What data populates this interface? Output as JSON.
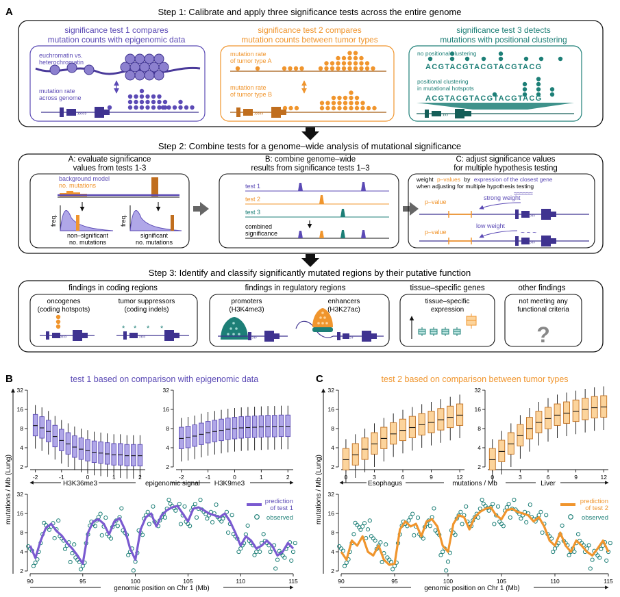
{
  "panel_letters": {
    "a": "A",
    "b": "B",
    "c": "C"
  },
  "step1": {
    "title": "Step 1: Calibrate and apply three significance tests across the entire genome",
    "test1": {
      "title_l1": "significance test 1 compares",
      "title_l2": "mutation counts with epigenomic data",
      "label_chrom_l1": "euchromatin vs.",
      "label_chrom_l2": "heterochromatin",
      "label_rate_l1": "mutation rate",
      "label_rate_l2": "across genome"
    },
    "test2": {
      "title_l1": "significance test 2 compares",
      "title_l2": "mutation counts between tumor types",
      "label_a_l1": "mutation rate",
      "label_a_l2": "of tumor type A",
      "label_b_l1": "mutation rate",
      "label_b_l2": "of tumor type B"
    },
    "test3": {
      "title_l1": "significance test 3 detects",
      "title_l2": "mutations with positional clustering",
      "label_none": "no positional clustering",
      "sequence": "ACGTACGTACGTACGTACG",
      "label_pos_l1": "positional clustering",
      "label_pos_l2": "in mutational hotspots"
    }
  },
  "step2": {
    "title": "Step 2: Combine tests for a genome–wide analysis of mutational significance",
    "a": {
      "title_l1": "A: evaluate significance",
      "title_l2": "values from tests 1-3",
      "legend_bg_l1": "background model",
      "legend_bg_l2": "no. mutations",
      "freq": "freq.",
      "nonsig_l1": "non–significant",
      "nonsig_l2": "no. mutations",
      "sig_l1": "significant",
      "sig_l2": "no. mutations"
    },
    "b": {
      "title_l1": "B: combine genome–wide",
      "title_l2": "results from significance tests 1–3",
      "test1": "test 1",
      "test2": "test 2",
      "test3": "test 3",
      "combined_l1": "combined",
      "combined_l2": "significance"
    },
    "c": {
      "title_l1": "C: adjust significance values",
      "title_l2": "for multiple hypothesis testing",
      "note_weight": "weight",
      "note_pvalues": "p–values",
      "note_by": "by",
      "note_expr": "expression of the closest gene",
      "note_l2": "when adjusting for multiple hypothesis testing",
      "pvalue": "p–value",
      "strong": "strong weight",
      "low": "low weight"
    }
  },
  "step3": {
    "title": "Step 3: Identify and classify significantly mutated regions by their putative function",
    "coding": {
      "title": "findings in coding regions",
      "onc_l1": "oncogenes",
      "onc_l2": "(coding hotspots)",
      "ts_l1": "tumor suppressors",
      "ts_l2": "(coding indels)"
    },
    "regulatory": {
      "title": "findings in regulatory regions",
      "prom_l1": "promoters",
      "prom_l2": "(H3K4me3)",
      "enh_l1": "enhancers",
      "enh_l2": "(H3K27ac)"
    },
    "tissue": {
      "title": "tissue–specific genes",
      "box_l1": "tissue–specific",
      "box_l2": "expression"
    },
    "other": {
      "title": "other findings",
      "box_l1": "not meeting any",
      "box_l2": "functional criteria",
      "mark": "?"
    }
  },
  "panelB": {
    "title": "test 1 based on comparison with epigenomic data",
    "ylabel": "mutations / Mb (Lung)",
    "left_xlabel": "H3K36me3",
    "mid_xlabel": "epigenomic signal",
    "right_xlabel": "H3K9me3",
    "bottom_xlabel": "genomic position on Chr 1 (Mb)",
    "legend_pred_l1": "prediction",
    "legend_pred_l2": "of test 1",
    "legend_obs": "observed"
  },
  "panelC": {
    "title": "test 2 based on comparison between tumor types",
    "ylabel": "mutations / Mb (Lung)",
    "left_xlabel": "Esophagus",
    "mid_xlabel": "mutations / Mb",
    "right_xlabel": "Liver",
    "bottom_xlabel": "genomic position on Chr 1 (Mb)",
    "legend_pred_l1": "prediction",
    "legend_pred_l2": "of test 2",
    "legend_obs": "observed"
  },
  "colors": {
    "purple": "#5b4ab5",
    "purple_light": "#b0a7e8",
    "orange": "#f0952d",
    "orange_light": "#fcd49c",
    "teal": "#1d7f77",
    "arrow_gray": "#666666"
  },
  "chart_data": [
    {
      "type": "box",
      "name": "B-left",
      "xlabel": "H3K36me3",
      "xlim": [
        -2.2,
        2.2
      ],
      "xticks": [
        -2,
        -1,
        0,
        1,
        2
      ],
      "ylim_log2": [
        1,
        5
      ],
      "yticks": [
        2,
        4,
        8,
        16,
        32
      ],
      "x": [
        -2.0,
        -1.75,
        -1.5,
        -1.25,
        -1.0,
        -0.75,
        -0.5,
        -0.25,
        0.0,
        0.25,
        0.5,
        0.75,
        1.0,
        1.25,
        1.5,
        1.75,
        2.0
      ],
      "median": [
        8.9,
        8.2,
        7.2,
        6.0,
        5.2,
        4.6,
        4.1,
        3.8,
        3.6,
        3.4,
        3.3,
        3.2,
        3.1,
        3.1,
        3.0,
        3.0,
        3.0
      ]
    },
    {
      "type": "box",
      "name": "B-right",
      "xlabel": "H3K9me3",
      "xlim": [
        -2.2,
        2.2
      ],
      "xticks": [
        -2,
        -1,
        0,
        1,
        2
      ],
      "ylim_log2": [
        1,
        5
      ],
      "yticks": [
        2,
        4,
        8,
        16,
        32
      ],
      "x": [
        -2.0,
        -1.75,
        -1.5,
        -1.25,
        -1.0,
        -0.75,
        -0.5,
        -0.25,
        0.0,
        0.25,
        0.5,
        0.75,
        1.0,
        1.25,
        1.5,
        1.75,
        2.0
      ],
      "median": [
        5.6,
        5.8,
        6.1,
        6.5,
        6.9,
        7.2,
        7.5,
        7.8,
        8.0,
        8.2,
        8.3,
        8.4,
        8.5,
        8.6,
        8.6,
        8.7,
        8.7
      ]
    },
    {
      "type": "line",
      "name": "B-bottom",
      "xlabel": "genomic position on Chr 1 (Mb)",
      "xlim": [
        90,
        115
      ],
      "xticks": [
        90,
        95,
        100,
        105,
        110,
        115
      ],
      "ylim_log2": [
        1,
        5
      ],
      "yticks": [
        2,
        4,
        8,
        16,
        32
      ],
      "series": [
        {
          "name": "prediction of test 1",
          "x": [
            90,
            90.5,
            91,
            91.5,
            92,
            92.5,
            93,
            93.5,
            94,
            94.5,
            95,
            95.5,
            96,
            96.5,
            97,
            97.5,
            98,
            98.5,
            99,
            99.5,
            100,
            100.5,
            101,
            101.5,
            102,
            102.5,
            103,
            103.5,
            104,
            104.5,
            105,
            105.5,
            106,
            106.5,
            107,
            107.5,
            108,
            108.5,
            109,
            109.5,
            110,
            110.5,
            111,
            111.5,
            112,
            112.5,
            113,
            113.5,
            114,
            114.5,
            115
          ],
          "values": [
            5.0,
            3.2,
            6.0,
            9.5,
            11.0,
            8.5,
            7.2,
            5.5,
            4.5,
            3.5,
            2.6,
            8.0,
            12.0,
            13.0,
            11.0,
            7.5,
            12.0,
            13.5,
            9.0,
            4.5,
            3.0,
            9.0,
            14.0,
            16.0,
            10.0,
            15.0,
            18.0,
            20.0,
            21.0,
            16.0,
            12.0,
            19.0,
            20.0,
            18.0,
            16.0,
            15.0,
            14.0,
            16.0,
            12.0,
            8.0,
            5.0,
            7.0,
            6.0,
            4.5,
            5.0,
            6.0,
            5.0,
            3.5,
            4.0,
            5.5,
            4.5
          ]
        },
        {
          "name": "observed",
          "x": [
            90,
            90.5,
            91,
            91.5,
            92,
            92.5,
            93,
            93.5,
            94,
            94.5,
            95,
            95.5,
            96,
            96.5,
            97,
            97.5,
            98,
            98.5,
            99,
            99.5,
            100,
            100.5,
            101,
            101.5,
            102,
            102.5,
            103,
            103.5,
            104,
            104.5,
            105,
            105.5,
            106,
            106.5,
            107,
            107.5,
            108,
            108.5,
            109,
            109.5,
            110,
            110.5,
            111,
            111.5,
            112,
            112.5,
            113,
            113.5,
            114,
            114.5,
            115
          ],
          "values": [
            4.5,
            2.7,
            5.5,
            10.5,
            10.0,
            9.0,
            6.5,
            5.0,
            3.8,
            3.0,
            2.4,
            7.5,
            11.0,
            14.0,
            10.0,
            7.0,
            11.0,
            14.0,
            8.0,
            4.0,
            2.8,
            8.0,
            15.0,
            15.0,
            11.0,
            14.0,
            19.0,
            21.0,
            20.0,
            15.0,
            11.0,
            20.0,
            19.0,
            17.0,
            15.0,
            16.0,
            13.0,
            15.0,
            11.0,
            7.0,
            4.5,
            7.5,
            5.5,
            4.0,
            5.5,
            5.5,
            4.5,
            3.0,
            3.5,
            5.0,
            4.0
          ]
        }
      ]
    },
    {
      "type": "box",
      "name": "C-left",
      "xlabel": "Esophagus",
      "xlim": [
        -0.5,
        12.5
      ],
      "xticks": [
        0,
        3,
        6,
        9,
        12
      ],
      "ylim_log2": [
        1,
        5
      ],
      "yticks": [
        2,
        4,
        8,
        16,
        32
      ],
      "x": [
        0,
        1,
        2,
        3,
        4,
        5,
        6,
        7,
        8,
        9,
        10,
        11,
        12
      ],
      "median": [
        2.6,
        3.1,
        3.8,
        4.6,
        5.6,
        6.6,
        7.5,
        8.3,
        9.2,
        10.0,
        11.0,
        12.0,
        13.0
      ]
    },
    {
      "type": "box",
      "name": "C-right",
      "xlabel": "Liver",
      "xlim": [
        -0.5,
        12.5
      ],
      "xticks": [
        0,
        3,
        6,
        9,
        12
      ],
      "ylim_log2": [
        1,
        5
      ],
      "yticks": [
        2,
        4,
        8,
        16,
        32
      ],
      "x": [
        0,
        1,
        2,
        3,
        4,
        5,
        6,
        7,
        8,
        9,
        10,
        11,
        12
      ],
      "median": [
        2.6,
        3.5,
        4.6,
        6.2,
        8.0,
        10.0,
        11.5,
        13.0,
        14.0,
        15.0,
        16.0,
        17.0,
        17.5
      ]
    },
    {
      "type": "line",
      "name": "C-bottom",
      "xlabel": "genomic position on Chr 1 (Mb)",
      "xlim": [
        90,
        115
      ],
      "xticks": [
        90,
        95,
        100,
        105,
        110,
        115
      ],
      "ylim_log2": [
        1,
        5
      ],
      "yticks": [
        2,
        4,
        8,
        16,
        32
      ],
      "series": [
        {
          "name": "prediction of test 2",
          "x": [
            90,
            90.5,
            91,
            91.5,
            92,
            92.5,
            93,
            93.5,
            94,
            94.5,
            95,
            95.5,
            96,
            96.5,
            97,
            97.5,
            98,
            98.5,
            99,
            99.5,
            100,
            100.5,
            101,
            101.5,
            102,
            102.5,
            103,
            103.5,
            104,
            104.5,
            105,
            105.5,
            106,
            106.5,
            107,
            107.5,
            108,
            108.5,
            109,
            109.5,
            110,
            110.5,
            111,
            111.5,
            112,
            112.5,
            113,
            113.5,
            114,
            114.5,
            115
          ],
          "values": [
            4.0,
            3.0,
            6.0,
            5.0,
            7.0,
            4.0,
            3.5,
            5.0,
            3.0,
            2.5,
            2.6,
            9.0,
            12.0,
            10.0,
            11.0,
            7.0,
            12.0,
            13.0,
            10.0,
            5.0,
            4.0,
            11.0,
            15.0,
            14.0,
            9.0,
            14.0,
            17.0,
            19.0,
            20.0,
            15.0,
            13.0,
            18.0,
            19.0,
            17.0,
            16.0,
            15.0,
            12.0,
            14.0,
            10.0,
            6.0,
            5.0,
            8.0,
            5.0,
            4.0,
            6.0,
            5.0,
            4.0,
            3.5,
            4.5,
            6.0,
            4.0
          ]
        },
        {
          "name": "observed",
          "x": [
            90,
            90.5,
            91,
            91.5,
            92,
            92.5,
            93,
            93.5,
            94,
            94.5,
            95,
            95.5,
            96,
            96.5,
            97,
            97.5,
            98,
            98.5,
            99,
            99.5,
            100,
            100.5,
            101,
            101.5,
            102,
            102.5,
            103,
            103.5,
            104,
            104.5,
            105,
            105.5,
            106,
            106.5,
            107,
            107.5,
            108,
            108.5,
            109,
            109.5,
            110,
            110.5,
            111,
            111.5,
            112,
            112.5,
            113,
            113.5,
            114,
            114.5,
            115
          ],
          "values": [
            4.5,
            2.7,
            5.5,
            10.5,
            10.0,
            9.0,
            6.5,
            5.0,
            3.8,
            3.0,
            2.4,
            7.5,
            11.0,
            14.0,
            10.0,
            7.0,
            11.0,
            14.0,
            8.0,
            4.0,
            2.8,
            8.0,
            15.0,
            15.0,
            11.0,
            14.0,
            19.0,
            21.0,
            20.0,
            15.0,
            11.0,
            20.0,
            19.0,
            17.0,
            15.0,
            16.0,
            13.0,
            15.0,
            11.0,
            7.0,
            4.5,
            7.5,
            5.5,
            4.0,
            5.5,
            5.5,
            4.5,
            3.0,
            3.5,
            5.0,
            4.0
          ]
        }
      ]
    }
  ]
}
